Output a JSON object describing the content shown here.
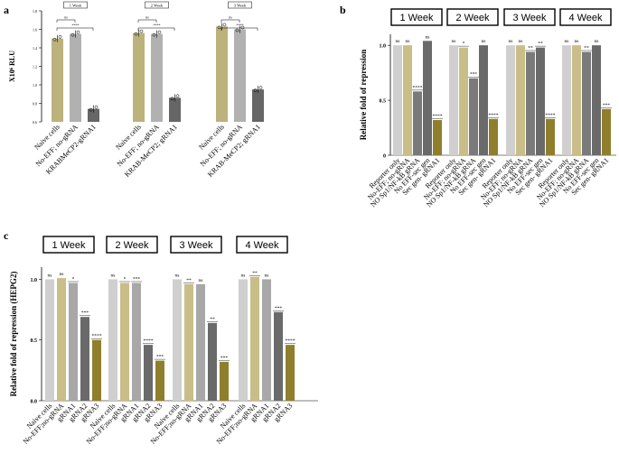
{
  "colors": {
    "khaki": "#c9bd88",
    "lightgray": "#cfcfcf",
    "midgray": "#a8a8a8",
    "darkgray": "#6a6a6a",
    "olive": "#8f7f2c",
    "gray": "#7a7a7a",
    "bar_a1": "#bcb27c",
    "bar_a2": "#b1b1b1",
    "bar_a3": "#666666"
  },
  "chart_data": [
    {
      "id": "a",
      "panel_label": "a",
      "type": "bar",
      "ylabel": "X10⁶ RLU",
      "ylim": [
        0.6,
        1.8
      ],
      "yticks": [
        "0.6",
        "0.8",
        "1.0",
        "1.2",
        "1.4",
        "1.6",
        "1.8"
      ],
      "groups": [
        {
          "title": "1 Week",
          "sig_top": "ns",
          "sig_bottom": "****",
          "categories": [
            "Naive cells",
            "No-EFF; no-gRNA",
            "KRABMeCP2-gRNA1"
          ],
          "values": [
            1.5,
            1.55,
            0.74
          ]
        },
        {
          "title": "2 Week",
          "sig_top": "ns",
          "sig_bottom": "****",
          "categories": [
            "Naive cells",
            "No-EFF; no-gRNA",
            "KRAB-MeCP2; gRNA1"
          ],
          "values": [
            1.56,
            1.55,
            0.86
          ]
        },
        {
          "title": "3 Week",
          "sig_top": "ns",
          "sig_bottom": "****",
          "categories": [
            "Naive cells",
            "No-EFF; no-gRNA",
            "KRAB-MeCP2; gRNA1"
          ],
          "values": [
            1.63,
            1.6,
            0.95
          ]
        }
      ]
    },
    {
      "id": "b",
      "panel_label": "b",
      "type": "bar",
      "ylabel": "Relative fold of repression",
      "ylim": [
        0,
        1.1
      ],
      "yticks": [
        "0",
        "0.5",
        "1.0"
      ],
      "groups": [
        {
          "title": "1 Week",
          "categories": [
            "Reporter only",
            "No-EFF; no-gRNA",
            "NO Sp1/NF-kB gRNA",
            "No EFF-sec gen",
            "Sec gen- gRNA1"
          ],
          "values": [
            1.0,
            1.0,
            0.58,
            1.04,
            0.32
          ],
          "sig": [
            "ns",
            "ns",
            "****",
            "ns",
            "****"
          ]
        },
        {
          "title": "2 Week",
          "categories": [
            "Reporter only",
            "No-EFF; no-gRNA",
            "NO Sp1/NF-kB gRNA",
            "No EFF-sec gen",
            "Sec gen- gRNA1"
          ],
          "values": [
            1.0,
            0.98,
            0.7,
            1.0,
            0.33
          ],
          "sig": [
            "ns",
            "*",
            "***",
            "ns",
            "****"
          ]
        },
        {
          "title": "3 Week",
          "categories": [
            "Reporter only",
            "No-EFF; no-gRNA",
            "NO Sp1/NF-kB gRNA",
            "No EFF-sec gen",
            "Sec gen- gRNA1"
          ],
          "values": [
            1.0,
            1.0,
            0.94,
            0.98,
            0.33
          ],
          "sig": [
            "ns",
            "ns",
            "**",
            "**",
            "****"
          ]
        },
        {
          "title": "4 Week",
          "categories": [
            "Reporter only",
            "No-EFF; no-gRNA",
            "NO Sp1/NF-kB gRNA",
            "No EFF-sec gen",
            "Sec gen- gRNA1"
          ],
          "values": [
            1.0,
            1.0,
            0.94,
            1.0,
            0.42
          ],
          "sig": [
            "ns",
            "ns",
            "**",
            "ns",
            "***"
          ]
        }
      ]
    },
    {
      "id": "c",
      "panel_label": "c",
      "type": "bar",
      "ylabel": "Relative fold of repression (HEPG2)",
      "ylim": [
        0,
        1.1
      ],
      "yticks": [
        "0.0",
        "0.5",
        "1.0"
      ],
      "groups": [
        {
          "title": "1 Week",
          "categories": [
            "Naive cells",
            "No-EFF;no-gRNA",
            "gRNA1",
            "gRNA2",
            "gRNA3"
          ],
          "values": [
            1.0,
            1.01,
            0.97,
            0.69,
            0.5
          ],
          "sig": [
            "ns",
            "ns",
            "*",
            "***",
            "****"
          ]
        },
        {
          "title": "2 Week",
          "categories": [
            "Naive cells",
            "No-EFF;no-gRNA",
            "gRNA1",
            "gRNA2",
            "gRNA3"
          ],
          "values": [
            1.0,
            0.97,
            0.97,
            0.46,
            0.33
          ],
          "sig": [
            "ns",
            "*",
            "***",
            "****",
            "***"
          ]
        },
        {
          "title": "3 Week",
          "categories": [
            "Naive cells",
            "No-EFF;no-gRNA",
            "gRNA1",
            "gRNA2",
            "gRNA3"
          ],
          "values": [
            1.0,
            0.96,
            0.96,
            0.64,
            0.32
          ],
          "sig": [
            "ns",
            "**",
            "ns",
            "**",
            "***"
          ]
        },
        {
          "title": "4 Week",
          "categories": [
            "Naive cells",
            "No-EFF;no-gRNA",
            "gRNA1",
            "gRNA2",
            "gRNA3"
          ],
          "values": [
            1.0,
            1.02,
            1.0,
            0.73,
            0.46
          ],
          "sig": [
            "ns",
            "**",
            "ns",
            "***",
            "****"
          ]
        }
      ]
    }
  ]
}
